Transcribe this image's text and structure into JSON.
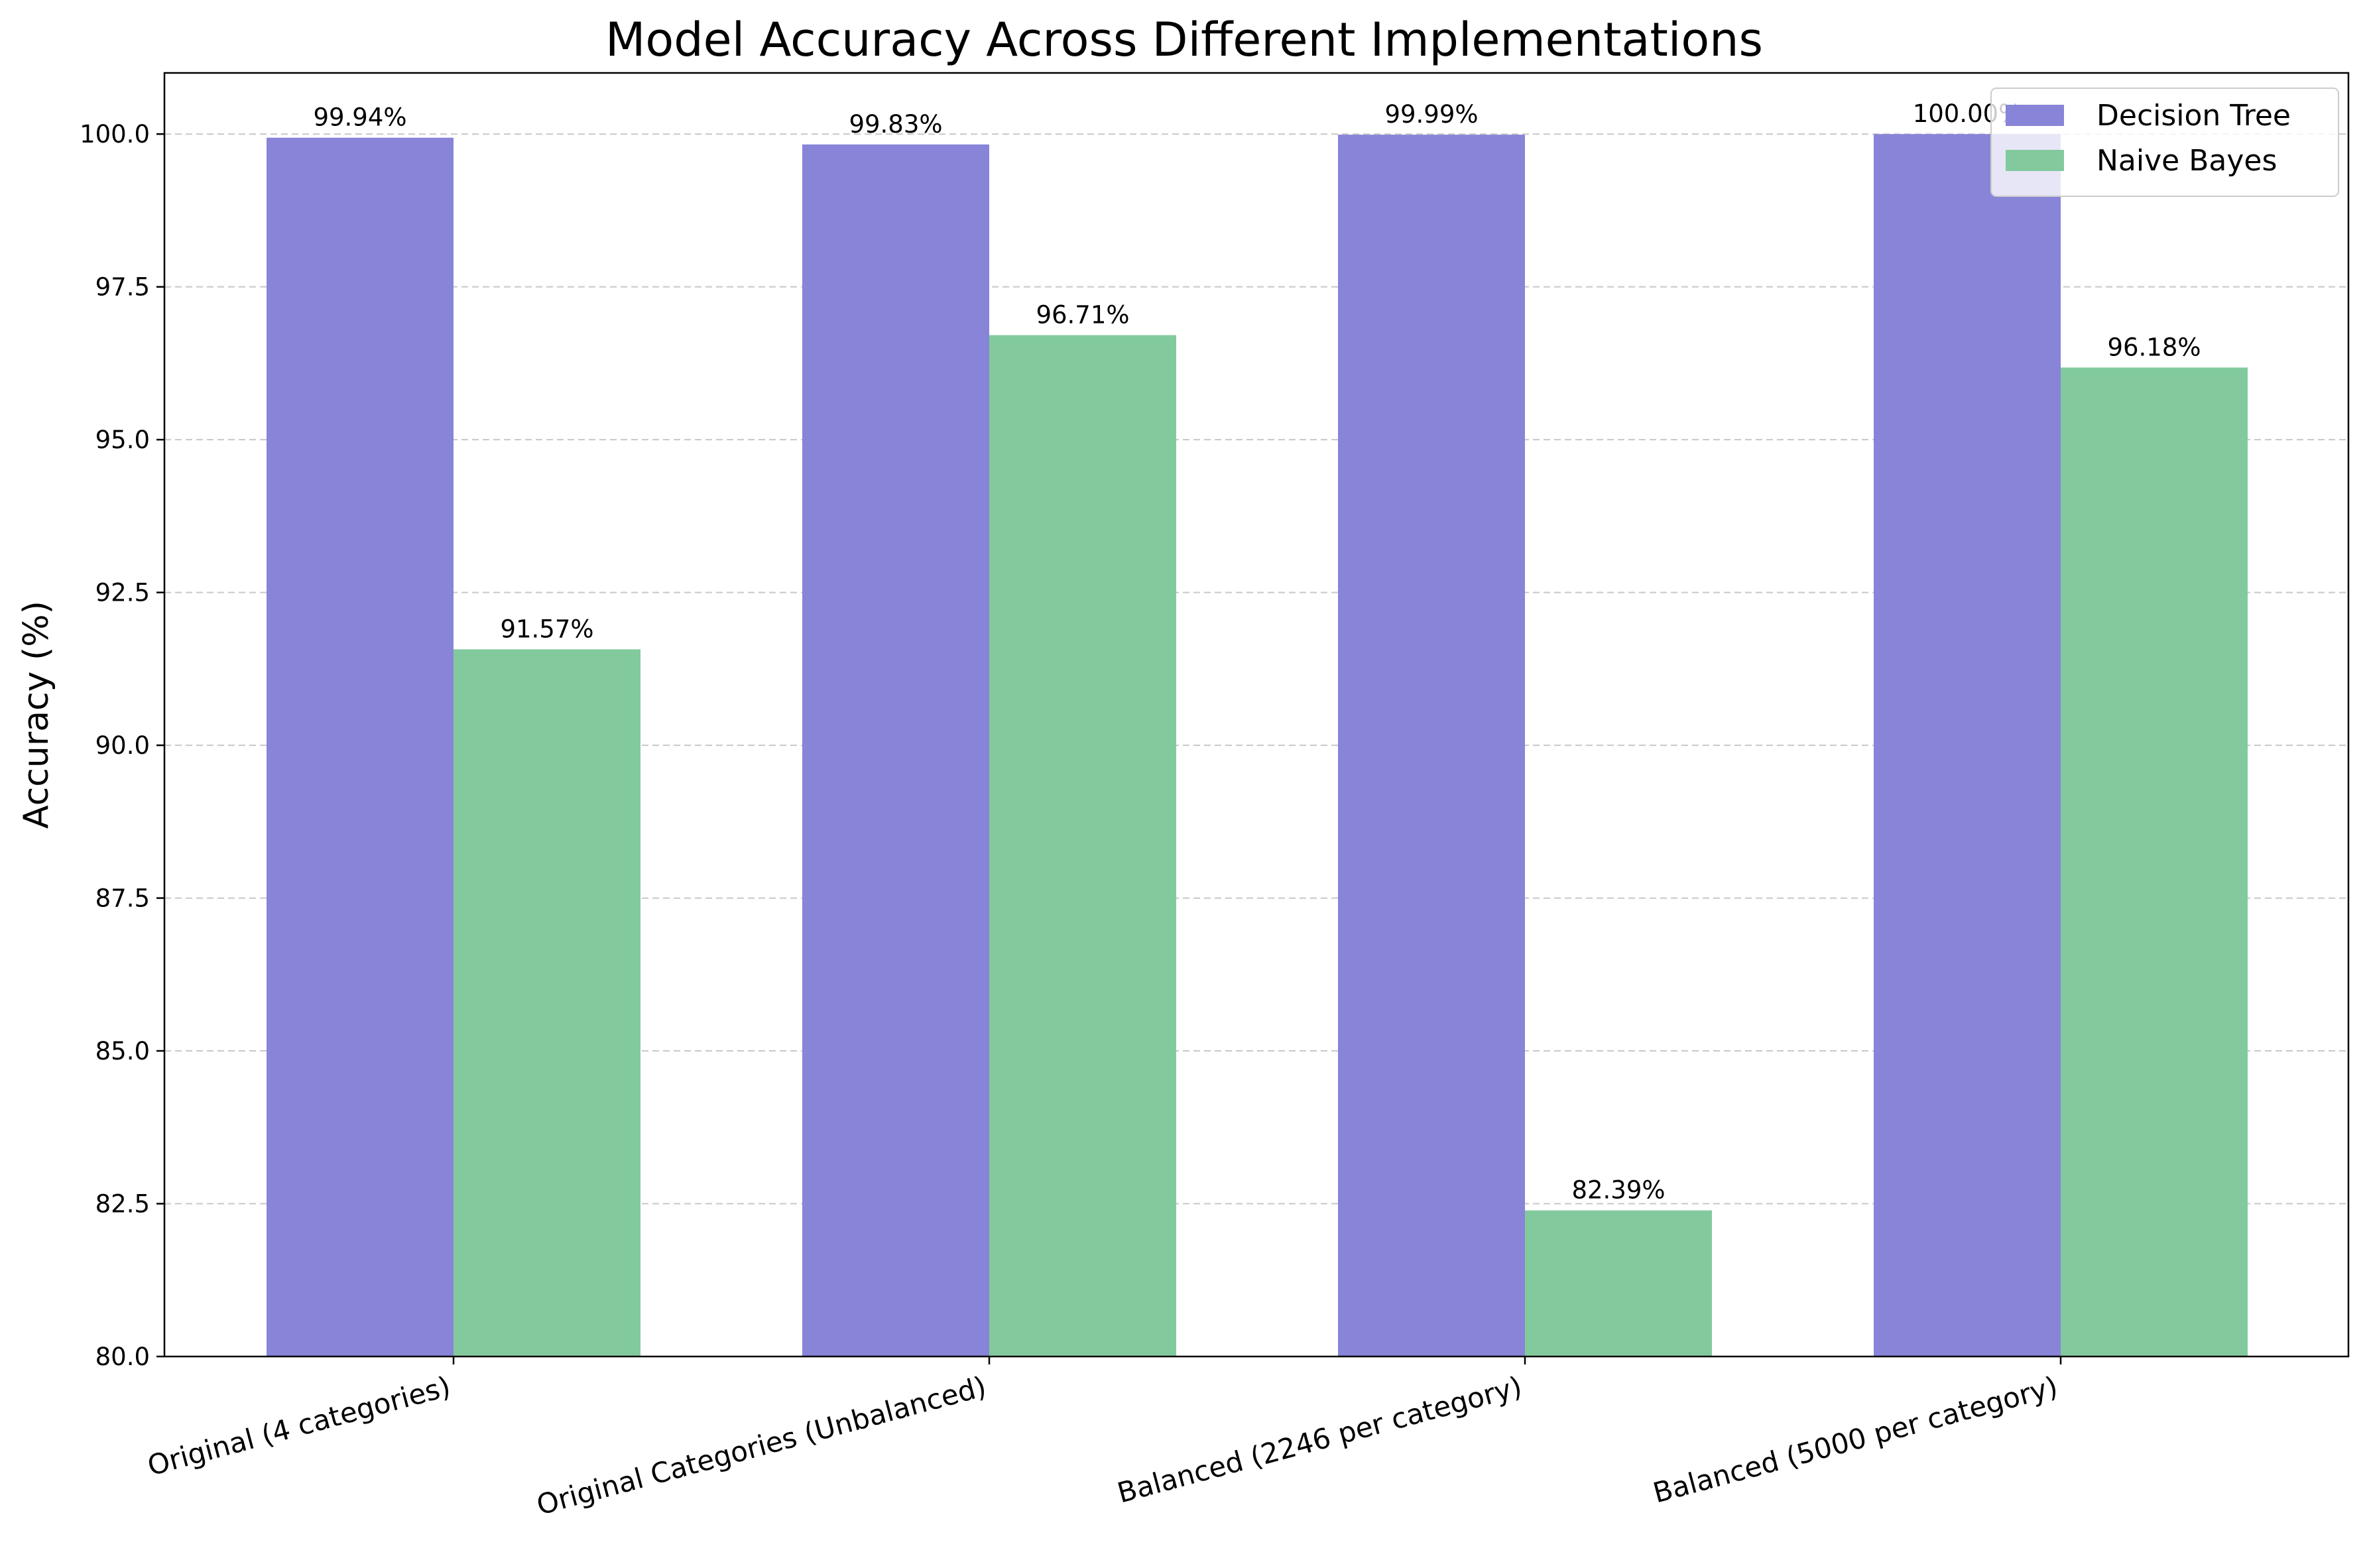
{
  "chart_data": {
    "type": "bar",
    "title": "Model Accuracy Across Different Implementations",
    "xlabel": "",
    "ylabel": "Accuracy (%)",
    "ylim": [
      80.0,
      101.0
    ],
    "yticks": [
      "80.0",
      "82.5",
      "85.0",
      "87.5",
      "90.0",
      "92.5",
      "95.0",
      "97.5",
      "100.0"
    ],
    "grid": "horizontal dashed",
    "legend_placement": "top-right",
    "categories": [
      "Original (4 categories)",
      "Original Categories (Unbalanced)",
      "Balanced (2246 per category)",
      "Balanced (5000 per category)"
    ],
    "series": [
      {
        "name": "Decision Tree",
        "color": "#8884d8",
        "values": [
          99.94,
          99.83,
          99.99,
          100.0
        ],
        "labels": [
          "99.94%",
          "99.83%",
          "99.99%",
          "100.00%"
        ]
      },
      {
        "name": "Naive Bayes",
        "color": "#82ca9d",
        "values": [
          91.57,
          96.71,
          82.39,
          96.18
        ],
        "labels": [
          "91.57%",
          "96.71%",
          "82.39%",
          "96.18%"
        ]
      }
    ]
  }
}
